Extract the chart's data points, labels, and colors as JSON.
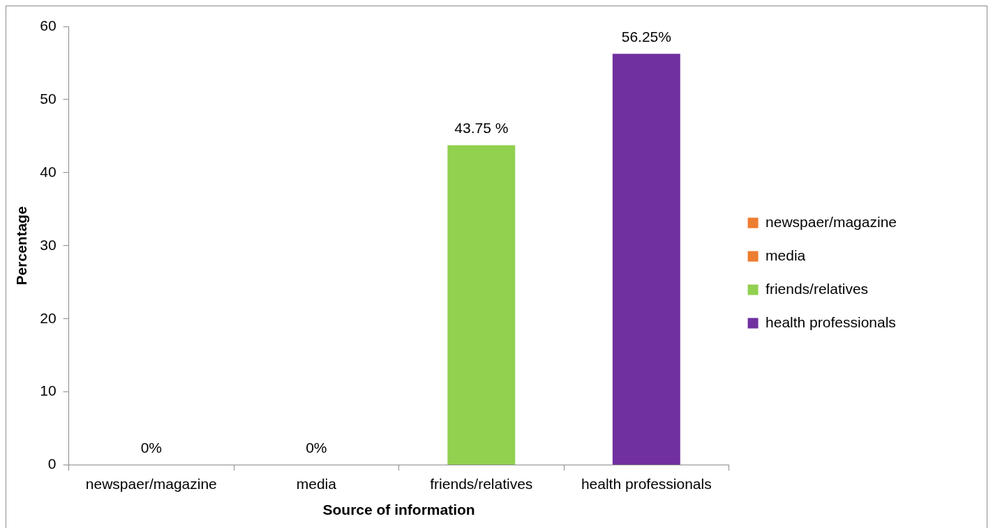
{
  "chart_data": {
    "type": "bar",
    "categories": [
      "newspaer/magazine",
      "media",
      "friends/relatives",
      "health professionals"
    ],
    "series": [
      {
        "name": "newspaer/magazine",
        "color": "#ed7d31",
        "values": [
          0,
          null,
          null,
          null
        ],
        "value_labels": [
          "0%",
          null,
          null,
          null
        ]
      },
      {
        "name": "media",
        "color": "#ed7d31",
        "values": [
          null,
          0,
          null,
          null
        ],
        "value_labels": [
          null,
          "0%",
          null,
          null
        ]
      },
      {
        "name": "friends/relatives",
        "color": "#92d050",
        "values": [
          null,
          null,
          43.75,
          null
        ],
        "value_labels": [
          null,
          null,
          "43.75 %",
          null
        ]
      },
      {
        "name": "health professionals",
        "color": "#7030a0",
        "values": [
          null,
          null,
          null,
          56.25
        ],
        "value_labels": [
          null,
          null,
          null,
          "56.25%"
        ]
      }
    ],
    "xlabel": "Source of information",
    "ylabel": "Percentage",
    "ylim": [
      0,
      60
    ],
    "yticks": [
      0,
      10,
      20,
      30,
      40,
      50,
      60
    ],
    "grid": false,
    "legend": "right"
  }
}
